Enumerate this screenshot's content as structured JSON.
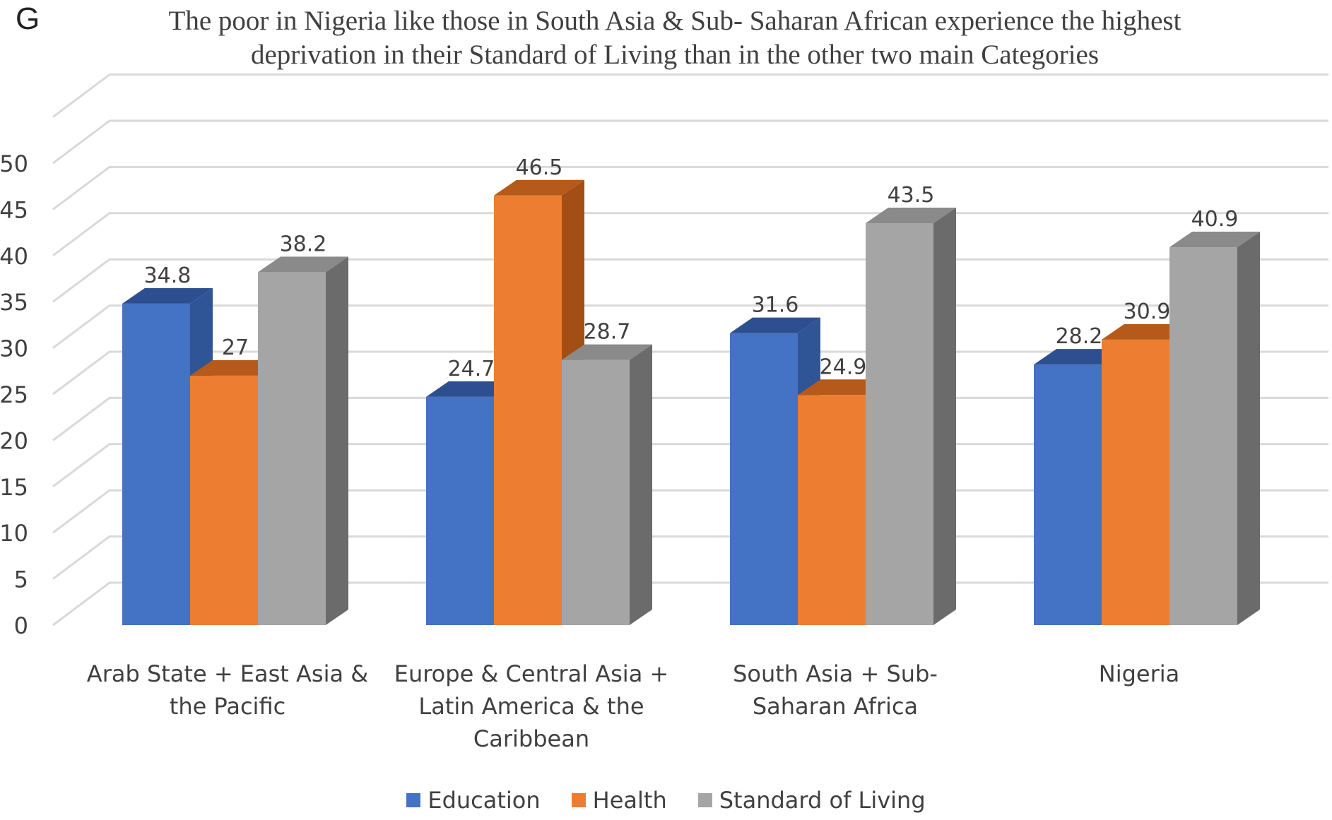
{
  "panel_letter": "G",
  "chart_data": {
    "type": "bar",
    "title": "The poor in Nigeria like those in South Asia & Sub- Saharan African experience the highest deprivation in their Standard of Living than in the other two main Categories",
    "categories": [
      [
        "Arab State + East Asia &",
        "the Pacific"
      ],
      [
        "Europe & Central Asia +",
        "Latin America & the",
        "Caribbean"
      ],
      [
        "South Asia + Sub-",
        "Saharan Africa"
      ],
      [
        "Nigeria"
      ]
    ],
    "series": [
      {
        "name": "Education",
        "values": [
          34.8,
          24.7,
          31.6,
          28.2
        ],
        "labels": [
          "34.8",
          "24.7",
          "31.6",
          "28.2"
        ],
        "color": "#4472C4",
        "side_color": "#2F5597",
        "top_color": "#2E4F8F"
      },
      {
        "name": "Health",
        "values": [
          27,
          46.5,
          24.9,
          30.9
        ],
        "labels": [
          "27",
          "46.5",
          "24.9",
          "30.9"
        ],
        "color": "#ED7D31",
        "side_color": "#A34E14",
        "top_color": "#B55A1A"
      },
      {
        "name": "Standard of Living",
        "values": [
          38.2,
          28.7,
          43.5,
          40.9
        ],
        "labels": [
          "38.2",
          "28.7",
          "43.5",
          "40.9"
        ],
        "color": "#A5A5A5",
        "side_color": "#6B6B6B",
        "top_color": "#8A8A8A"
      }
    ],
    "ylim": [
      0,
      55
    ],
    "yticks": [
      "0",
      "5",
      "10",
      "15",
      "20",
      "25",
      "30",
      "35",
      "40",
      "45",
      "50"
    ],
    "grid": true,
    "style": "3d-clustered-column",
    "legend_position": "bottom"
  }
}
